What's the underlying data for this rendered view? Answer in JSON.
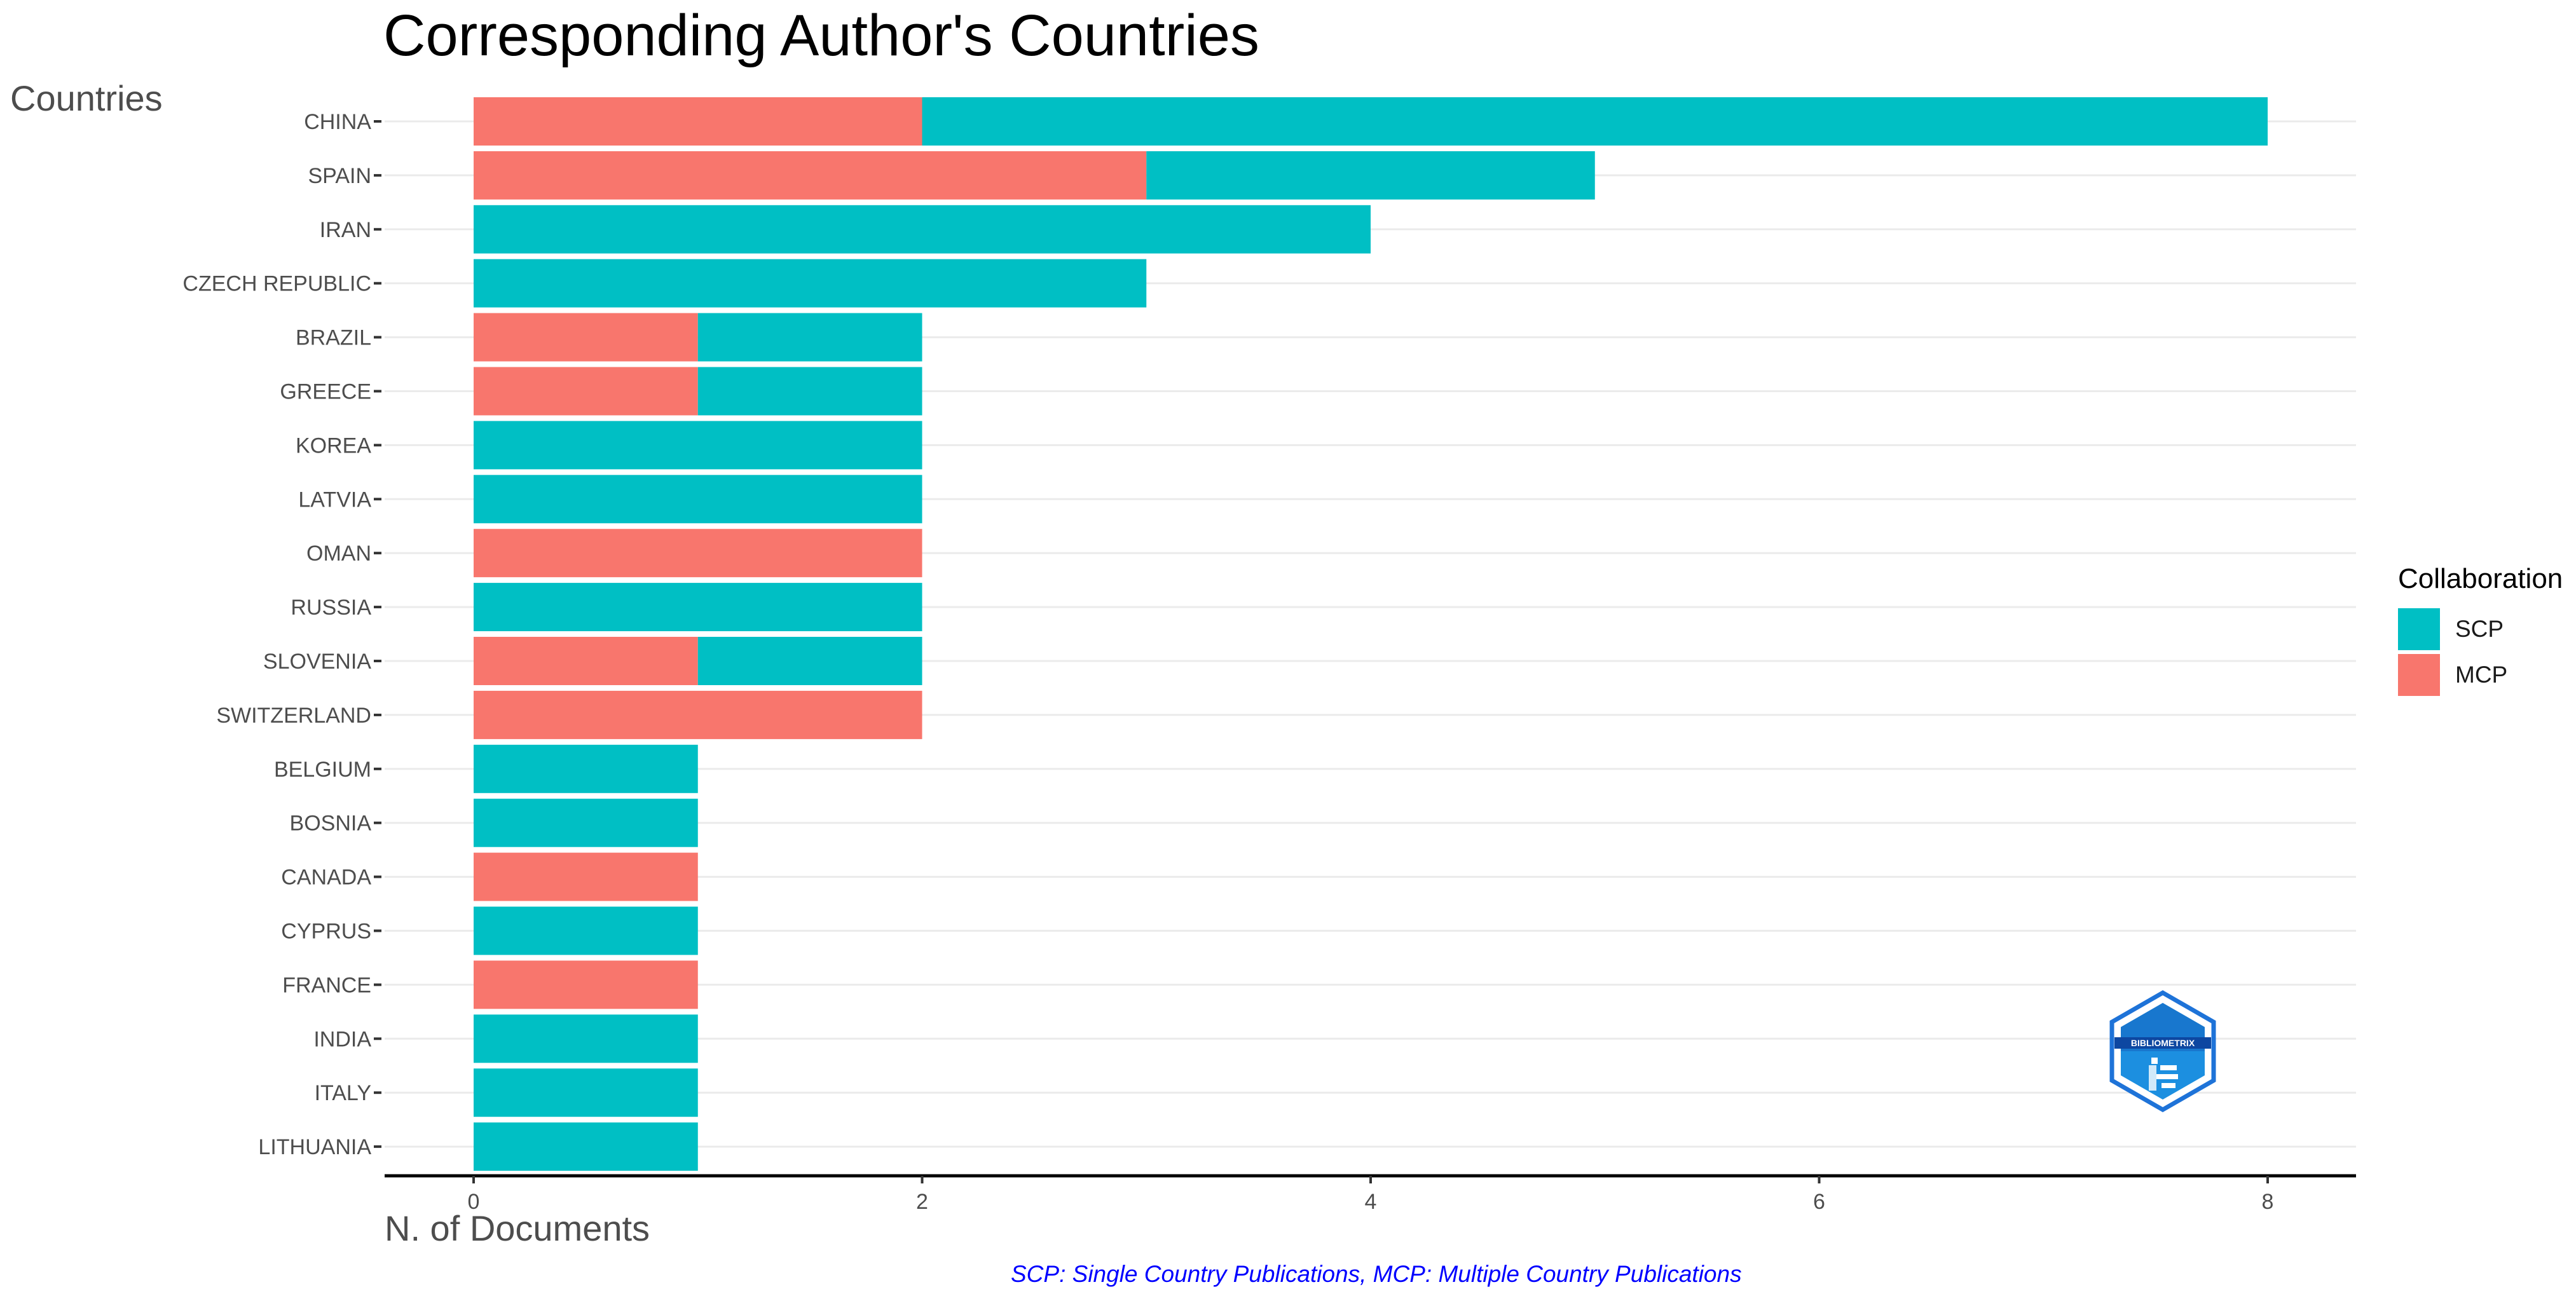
{
  "chart_data": {
    "type": "bar",
    "orientation": "horizontal",
    "stacked": true,
    "title": "Corresponding Author's Countries",
    "xlabel": "N. of Documents",
    "ylabel": "Countries",
    "caption": "SCP: Single Country Publications, MCP: Multiple Country Publications",
    "categories": [
      "CHINA",
      "SPAIN",
      "IRAN",
      "CZECH REPUBLIC",
      "BRAZIL",
      "GREECE",
      "KOREA",
      "LATVIA",
      "OMAN",
      "RUSSIA",
      "SLOVENIA",
      "SWITZERLAND",
      "BELGIUM",
      "BOSNIA",
      "CANADA",
      "CYPRUS",
      "FRANCE",
      "INDIA",
      "ITALY",
      "LITHUANIA"
    ],
    "series": [
      {
        "name": "SCP",
        "color": "#00bfc4",
        "values": [
          6,
          2,
          4,
          3,
          1,
          1,
          2,
          2,
          0,
          2,
          1,
          0,
          1,
          1,
          0,
          1,
          0,
          1,
          1,
          1
        ]
      },
      {
        "name": "MCP",
        "color": "#f8766d",
        "values": [
          2,
          3,
          0,
          0,
          1,
          1,
          0,
          0,
          2,
          0,
          1,
          2,
          0,
          0,
          1,
          0,
          1,
          0,
          0,
          0
        ]
      }
    ],
    "xlim": [
      0,
      8
    ],
    "xticks": [
      "0",
      "2",
      "4",
      "6",
      "8"
    ],
    "grid": true,
    "legend": {
      "title": "Collaboration",
      "position": "right"
    }
  },
  "logo": {
    "text": "BIBLIOMETRIX"
  }
}
